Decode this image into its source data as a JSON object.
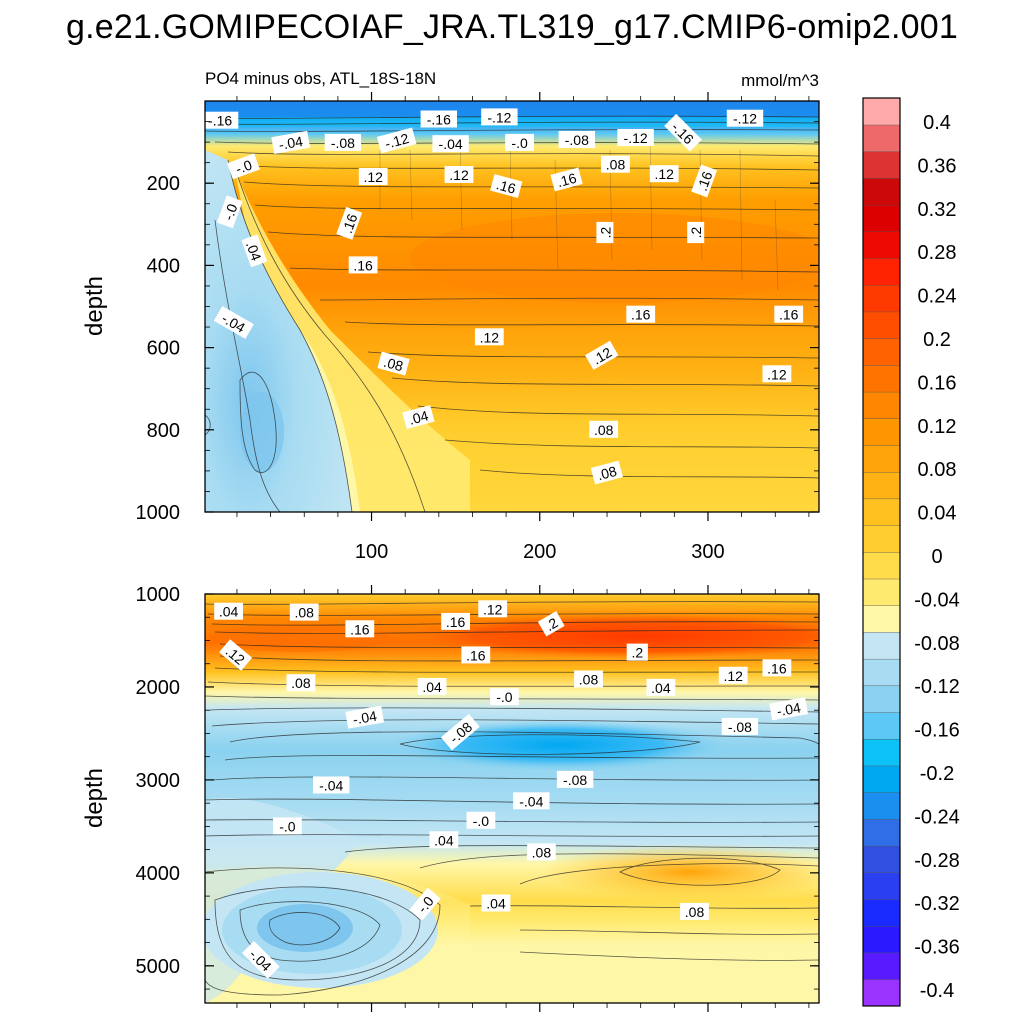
{
  "title": "g.e21.GOMIPECOIAF_JRA.TL319_g17.CMIP6-omip2.001",
  "chart_data": {
    "type": "heatmap",
    "subtitle": "PO4 minus obs, ATL_18S-18N",
    "units": "mmol/m^3",
    "ylabel": "depth",
    "x_range": [
      1,
      366
    ],
    "x_ticks": [
      100,
      200,
      300
    ],
    "colorbar": {
      "levels": [
        -0.4,
        -0.36,
        -0.32,
        -0.28,
        -0.24,
        -0.2,
        -0.16,
        -0.12,
        -0.08,
        -0.04,
        0,
        0.04,
        0.08,
        0.12,
        0.16,
        0.2,
        0.24,
        0.28,
        0.32,
        0.36,
        0.4
      ],
      "labels": [
        "-0.4",
        "-0.36",
        "-0.32",
        "-0.28",
        "-0.24",
        "-0.2",
        "-0.16",
        "-0.12",
        "-0.08",
        "-0.04",
        "0",
        "0.04",
        "0.08",
        "0.12",
        "0.16",
        "0.2",
        "0.24",
        "0.28",
        "0.32",
        "0.36",
        "0.4"
      ],
      "colors": [
        "#9a33ff",
        "#5a1aff",
        "#2b1aff",
        "#1a2bff",
        "#2a3ff0",
        "#3050e0",
        "#2f6ee6",
        "#1a8ff0",
        "#00a8f2",
        "#0cc2f7",
        "#5cc8f5",
        "#8ad2f0",
        "#a8dcf2",
        "#c4e6f4",
        "#fff7a8",
        "#ffea70",
        "#ffdc4a",
        "#ffce2e",
        "#ffc11f",
        "#ffb214",
        "#ffa40a",
        "#ff9600",
        "#ff8600",
        "#ff7400",
        "#ff6200",
        "#ff4e00",
        "#ff3a00",
        "#ff2200",
        "#ee0a00",
        "#dd0000",
        "#cc0808",
        "#dd3333",
        "#ee6a6a",
        "#ffaaaa"
      ]
    },
    "panels": [
      {
        "name": "upper",
        "y_range": [
          0,
          1000
        ],
        "y_ticks": [
          200,
          400,
          600,
          800,
          1000
        ],
        "y_tick_labels": [
          "200",
          "400",
          "600",
          "800",
          "1000"
        ],
        "x_tick_labels": [
          "100",
          "200",
          "300"
        ],
        "contour_labels": [
          {
            "text": "-.16",
            "x": 10,
            "y": 48,
            "rot": 0
          },
          {
            "text": "-.16",
            "x": 140,
            "y": 45,
            "rot": 0
          },
          {
            "text": "-.12",
            "x": 176,
            "y": 40,
            "rot": 0
          },
          {
            "text": "-.12",
            "x": 322,
            "y": 43,
            "rot": 0
          },
          {
            "text": "-.16",
            "x": 285,
            "y": 78,
            "rot": 45
          },
          {
            "text": "-.04",
            "x": 52,
            "y": 102,
            "rot": -10
          },
          {
            "text": "-.08",
            "x": 83,
            "y": 102,
            "rot": 0
          },
          {
            "text": "-.12",
            "x": 115,
            "y": 97,
            "rot": -15
          },
          {
            "text": "-.04",
            "x": 147,
            "y": 105,
            "rot": 0
          },
          {
            "text": "-.0",
            "x": 188,
            "y": 102,
            "rot": 0
          },
          {
            "text": "-.08",
            "x": 222,
            "y": 95,
            "rot": 0
          },
          {
            "text": "-.12",
            "x": 257,
            "y": 90,
            "rot": 0
          },
          {
            "text": "-.0",
            "x": 24,
            "y": 160,
            "rot": -20
          },
          {
            "text": ".08",
            "x": 245,
            "y": 155,
            "rot": 0
          },
          {
            "text": ".12",
            "x": 101,
            "y": 185,
            "rot": 0
          },
          {
            "text": ".12",
            "x": 152,
            "y": 180,
            "rot": 0
          },
          {
            "text": ".12",
            "x": 274,
            "y": 178,
            "rot": 0
          },
          {
            "text": ".16",
            "x": 216,
            "y": 192,
            "rot": -15
          },
          {
            "text": ".16",
            "x": 180,
            "y": 208,
            "rot": 15
          },
          {
            "text": ".16",
            "x": 298,
            "y": 195,
            "rot": -70
          },
          {
            "text": "-.0",
            "x": 16,
            "y": 270,
            "rot": -70
          },
          {
            "text": ".16",
            "x": 87,
            "y": 298,
            "rot": -70
          },
          {
            "text": ".2",
            "x": 239,
            "y": 320,
            "rot": -90
          },
          {
            "text": ".2",
            "x": 293,
            "y": 320,
            "rot": -90
          },
          {
            "text": ".04",
            "x": 30,
            "y": 365,
            "rot": 70
          },
          {
            "text": ".16",
            "x": 95,
            "y": 400,
            "rot": 0
          },
          {
            "text": "-.04",
            "x": 18,
            "y": 540,
            "rot": 30
          },
          {
            "text": ".16",
            "x": 260,
            "y": 520,
            "rot": 0
          },
          {
            "text": ".16",
            "x": 348,
            "y": 520,
            "rot": 0
          },
          {
            "text": ".12",
            "x": 170,
            "y": 575,
            "rot": 0
          },
          {
            "text": ".12",
            "x": 237,
            "y": 620,
            "rot": -30
          },
          {
            "text": ".08",
            "x": 113,
            "y": 640,
            "rot": 15
          },
          {
            "text": ".12",
            "x": 341,
            "y": 665,
            "rot": 0
          },
          {
            "text": ".04",
            "x": 128,
            "y": 770,
            "rot": -15
          },
          {
            "text": ".08",
            "x": 238,
            "y": 800,
            "rot": 0
          },
          {
            "text": ".08",
            "x": 240,
            "y": 905,
            "rot": -15
          }
        ]
      },
      {
        "name": "lower",
        "y_range": [
          1000,
          5400
        ],
        "y_ticks": [
          1000,
          2000,
          3000,
          4000,
          5000
        ],
        "y_tick_labels": [
          "1000",
          "2000",
          "3000",
          "4000",
          "5000"
        ],
        "x_tick_labels": [],
        "contour_labels": [
          {
            "text": ".04",
            "x": 15,
            "y": 1190,
            "rot": 0
          },
          {
            "text": ".08",
            "x": 60,
            "y": 1200,
            "rot": 0
          },
          {
            "text": ".12",
            "x": 172,
            "y": 1165,
            "rot": 0
          },
          {
            "text": ".16",
            "x": 93,
            "y": 1380,
            "rot": 0
          },
          {
            "text": ".16",
            "x": 150,
            "y": 1300,
            "rot": 0
          },
          {
            "text": ".2",
            "x": 207,
            "y": 1325,
            "rot": -30
          },
          {
            "text": ".12",
            "x": 19,
            "y": 1660,
            "rot": 40
          },
          {
            "text": ".16",
            "x": 162,
            "y": 1660,
            "rot": 0
          },
          {
            "text": ".2",
            "x": 258,
            "y": 1630,
            "rot": 0
          },
          {
            "text": ".08",
            "x": 58,
            "y": 1960,
            "rot": 0
          },
          {
            "text": ".04",
            "x": 136,
            "y": 2000,
            "rot": 0
          },
          {
            "text": "-.0",
            "x": 179,
            "y": 2110,
            "rot": 0
          },
          {
            "text": ".08",
            "x": 229,
            "y": 1920,
            "rot": 0
          },
          {
            "text": ".04",
            "x": 272,
            "y": 2010,
            "rot": 0
          },
          {
            "text": ".12",
            "x": 315,
            "y": 1880,
            "rot": 0
          },
          {
            "text": ".16",
            "x": 341,
            "y": 1800,
            "rot": 0
          },
          {
            "text": "-.04",
            "x": 348,
            "y": 2240,
            "rot": -10
          },
          {
            "text": "-.04",
            "x": 96,
            "y": 2330,
            "rot": -10
          },
          {
            "text": "-.08",
            "x": 153,
            "y": 2490,
            "rot": -40
          },
          {
            "text": "-.08",
            "x": 319,
            "y": 2430,
            "rot": 0
          },
          {
            "text": "-.04",
            "x": 76,
            "y": 3060,
            "rot": 0
          },
          {
            "text": "-.08",
            "x": 221,
            "y": 3000,
            "rot": 0
          },
          {
            "text": "-.04",
            "x": 195,
            "y": 3230,
            "rot": 0
          },
          {
            "text": "-.0",
            "x": 50,
            "y": 3500,
            "rot": 0
          },
          {
            "text": "-.0",
            "x": 165,
            "y": 3440,
            "rot": 0
          },
          {
            "text": ".04",
            "x": 143,
            "y": 3650,
            "rot": 0
          },
          {
            "text": ".08",
            "x": 201,
            "y": 3780,
            "rot": 0
          },
          {
            "text": "-.0",
            "x": 132,
            "y": 4340,
            "rot": -50
          },
          {
            "text": ".04",
            "x": 174,
            "y": 4330,
            "rot": 0
          },
          {
            "text": ".08",
            "x": 292,
            "y": 4420,
            "rot": 0
          },
          {
            "text": "-.04",
            "x": 34,
            "y": 4940,
            "rot": 45
          }
        ]
      }
    ]
  }
}
